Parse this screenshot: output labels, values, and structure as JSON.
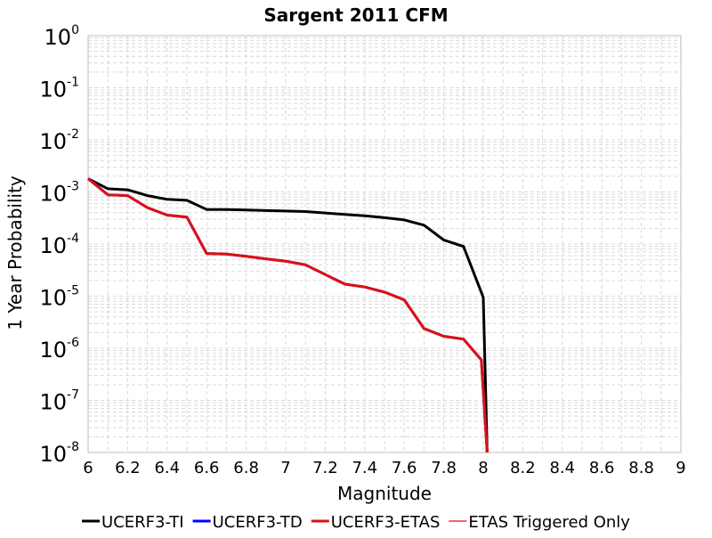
{
  "chart_data": {
    "type": "line",
    "title": "Sargent 2011 CFM",
    "xlabel": "Magnitude",
    "ylabel": "1 Year Probability",
    "xlim": [
      6,
      9
    ],
    "ylim": [
      1e-08,
      1
    ],
    "yscale": "log",
    "x_ticks": [
      "6",
      "6.2",
      "6.4",
      "6.6",
      "6.8",
      "7",
      "7.2",
      "7.4",
      "7.6",
      "7.8",
      "8",
      "8.2",
      "8.4",
      "8.6",
      "8.8",
      "9"
    ],
    "y_ticks": [
      {
        "base": "10",
        "exp": "0"
      },
      {
        "base": "10",
        "exp": "-1"
      },
      {
        "base": "10",
        "exp": "-2"
      },
      {
        "base": "10",
        "exp": "-3"
      },
      {
        "base": "10",
        "exp": "-4"
      },
      {
        "base": "10",
        "exp": "-5"
      },
      {
        "base": "10",
        "exp": "-6"
      },
      {
        "base": "10",
        "exp": "-7"
      },
      {
        "base": "10",
        "exp": "-8"
      }
    ],
    "grid": true,
    "legend_position": "bottom",
    "series": [
      {
        "name": "UCERF3-TI",
        "color": "#000000",
        "points": [
          [
            6.0,
            0.0018
          ],
          [
            6.1,
            0.00115
          ],
          [
            6.2,
            0.0011
          ],
          [
            6.3,
            0.00085
          ],
          [
            6.4,
            0.00072
          ],
          [
            6.5,
            0.00069
          ],
          [
            6.6,
            0.00046
          ],
          [
            6.7,
            0.00046
          ],
          [
            6.8,
            0.00045
          ],
          [
            6.9,
            0.00044
          ],
          [
            7.0,
            0.00043
          ],
          [
            7.1,
            0.00042
          ],
          [
            7.2,
            0.000395
          ],
          [
            7.3,
            0.00037
          ],
          [
            7.4,
            0.00035
          ],
          [
            7.5,
            0.00032
          ],
          [
            7.6,
            0.00029
          ],
          [
            7.7,
            0.00023
          ],
          [
            7.8,
            0.00012
          ],
          [
            7.9,
            9e-05
          ],
          [
            8.0,
            9.5e-06
          ],
          [
            8.02,
            1e-08
          ]
        ]
      },
      {
        "name": "UCERF3-TD",
        "color": "#0000ff",
        "points": [
          [
            6.0,
            0.0018
          ],
          [
            6.1,
            0.00088
          ],
          [
            6.2,
            0.00085
          ],
          [
            6.3,
            0.0005
          ],
          [
            6.4,
            0.00036
          ],
          [
            6.5,
            0.00033
          ],
          [
            6.6,
            6.6e-05
          ],
          [
            6.7,
            6.4e-05
          ],
          [
            6.8,
            5.8e-05
          ],
          [
            6.9,
            5.2e-05
          ],
          [
            7.0,
            4.7e-05
          ],
          [
            7.1,
            4e-05
          ],
          [
            7.2,
            2.6e-05
          ],
          [
            7.3,
            1.7e-05
          ],
          [
            7.4,
            1.5e-05
          ],
          [
            7.5,
            1.2e-05
          ],
          [
            7.6,
            8.5e-06
          ],
          [
            7.7,
            2.4e-06
          ],
          [
            7.8,
            1.7e-06
          ],
          [
            7.9,
            1.5e-06
          ],
          [
            7.99,
            6e-07
          ],
          [
            8.02,
            1e-08
          ]
        ]
      },
      {
        "name": "UCERF3-ETAS",
        "color": "#e01010",
        "points": [
          [
            6.0,
            0.0018
          ],
          [
            6.1,
            0.00088
          ],
          [
            6.2,
            0.00085
          ],
          [
            6.3,
            0.0005
          ],
          [
            6.4,
            0.00036
          ],
          [
            6.5,
            0.00033
          ],
          [
            6.6,
            6.6e-05
          ],
          [
            6.7,
            6.4e-05
          ],
          [
            6.8,
            5.8e-05
          ],
          [
            6.9,
            5.2e-05
          ],
          [
            7.0,
            4.7e-05
          ],
          [
            7.1,
            4e-05
          ],
          [
            7.2,
            2.6e-05
          ],
          [
            7.3,
            1.7e-05
          ],
          [
            7.4,
            1.5e-05
          ],
          [
            7.5,
            1.2e-05
          ],
          [
            7.6,
            8.5e-06
          ],
          [
            7.7,
            2.4e-06
          ],
          [
            7.8,
            1.7e-06
          ],
          [
            7.9,
            1.5e-06
          ],
          [
            7.99,
            6e-07
          ],
          [
            8.02,
            1e-08
          ]
        ]
      },
      {
        "name": "ETAS Triggered Only",
        "color": "#e83838",
        "points": []
      }
    ]
  }
}
